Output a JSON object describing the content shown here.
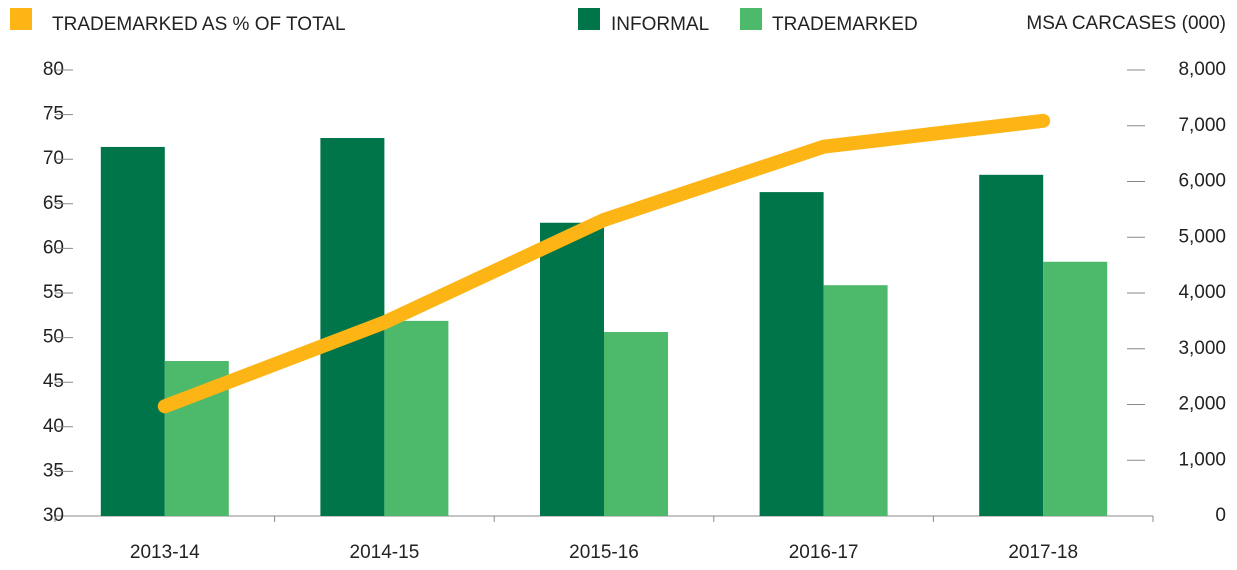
{
  "chart_data": {
    "type": "bar",
    "y2_label": "MSA CARCASES (000)",
    "categories": [
      "2013-14",
      "2014-15",
      "2015-16",
      "2016-17",
      "2017-18"
    ],
    "series": [
      {
        "name": "TRADEMARKED AS % OF TOTAL",
        "type": "line",
        "axis": "y",
        "color": "#fdb515",
        "values": [
          42.3,
          51.7,
          63.2,
          71.4,
          74.3
        ]
      },
      {
        "name": "INFORMAL",
        "type": "bar",
        "axis": "y2",
        "color": "#00754a",
        "values": [
          6620,
          6780,
          5260,
          5810,
          6120
        ]
      },
      {
        "name": "TRADEMARKED",
        "type": "bar",
        "axis": "y2",
        "color": "#4cb96b",
        "values": [
          2780,
          3500,
          3300,
          4140,
          4560
        ]
      }
    ],
    "ylim": [
      30,
      80
    ],
    "yticks": [
      30,
      35,
      40,
      45,
      50,
      55,
      60,
      65,
      70,
      75,
      80
    ],
    "y2lim": [
      0,
      8000
    ],
    "y2ticks": [
      0,
      {
        "value": 1000,
        "label": "1,000"
      },
      {
        "value": 2000,
        "label": "2,000"
      },
      {
        "value": 3000,
        "label": "3,000"
      },
      {
        "value": 4000,
        "label": "4,000"
      },
      {
        "value": 5000,
        "label": "5,000"
      },
      {
        "value": 6000,
        "label": "6,000"
      },
      {
        "value": 7000,
        "label": "7,000"
      },
      {
        "value": 8000,
        "label": "8,000"
      }
    ],
    "grid": false
  }
}
